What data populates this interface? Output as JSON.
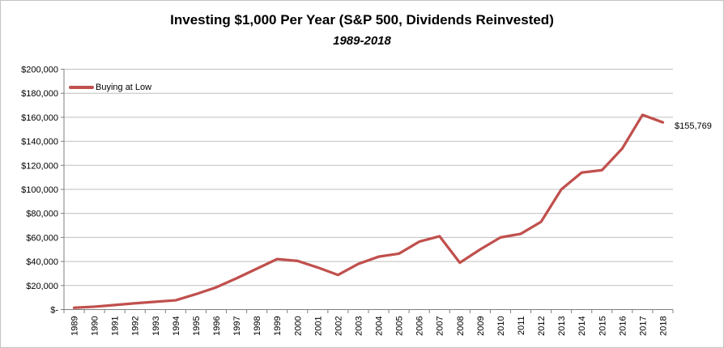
{
  "chart": {
    "title": "Investing $1,000 Per Year (S&P 500, Dividends Reinvested)",
    "subtitle": "1989-2018",
    "legend_label": "Buying at Low",
    "final_value_label": "$155,769"
  },
  "chart_data": {
    "type": "line",
    "title": "Investing $1,000 Per Year (S&P 500, Dividends Reinvested)",
    "subtitle": "1989-2018",
    "categories": [
      "1989",
      "1990",
      "1991",
      "1992",
      "1993",
      "1994",
      "1995",
      "1996",
      "1997",
      "1998",
      "1999",
      "2000",
      "2001",
      "2002",
      "2003",
      "2004",
      "2005",
      "2006",
      "2007",
      "2008",
      "2009",
      "2010",
      "2011",
      "2012",
      "2013",
      "2014",
      "2015",
      "2016",
      "2017",
      "2018"
    ],
    "series": [
      {
        "name": "Buying at Low",
        "color": "#C0504D",
        "values": [
          1500,
          2400,
          3800,
          5200,
          6500,
          7700,
          12800,
          18500,
          26000,
          34000,
          42000,
          40500,
          35000,
          28800,
          38000,
          44000,
          46500,
          56500,
          61000,
          39000,
          50000,
          60000,
          63000,
          73000,
          100000,
          114000,
          116000,
          134000,
          162000,
          155769
        ]
      }
    ],
    "xlabel": "",
    "ylabel": "",
    "ylim": [
      0,
      200000
    ],
    "ytick_step": 20000,
    "ytick_labels": [
      "$-",
      "$20,000",
      "$40,000",
      "$60,000",
      "$80,000",
      "$100,000",
      "$120,000",
      "$140,000",
      "$160,000",
      "$180,000",
      "$200,000"
    ],
    "grid": true,
    "x_tick_label_rotation": 90,
    "legend_position": "top-left-inside",
    "annotations": [
      {
        "text": "$155,769",
        "category": "2018",
        "value": 155769
      }
    ]
  },
  "colors": {
    "series_line": "#C0504D",
    "gridline": "#BFBFBF",
    "axis": "#7F7F7F",
    "text": "#000000",
    "frame_border": "#C3C3C3",
    "background": "#FFFFFF"
  }
}
